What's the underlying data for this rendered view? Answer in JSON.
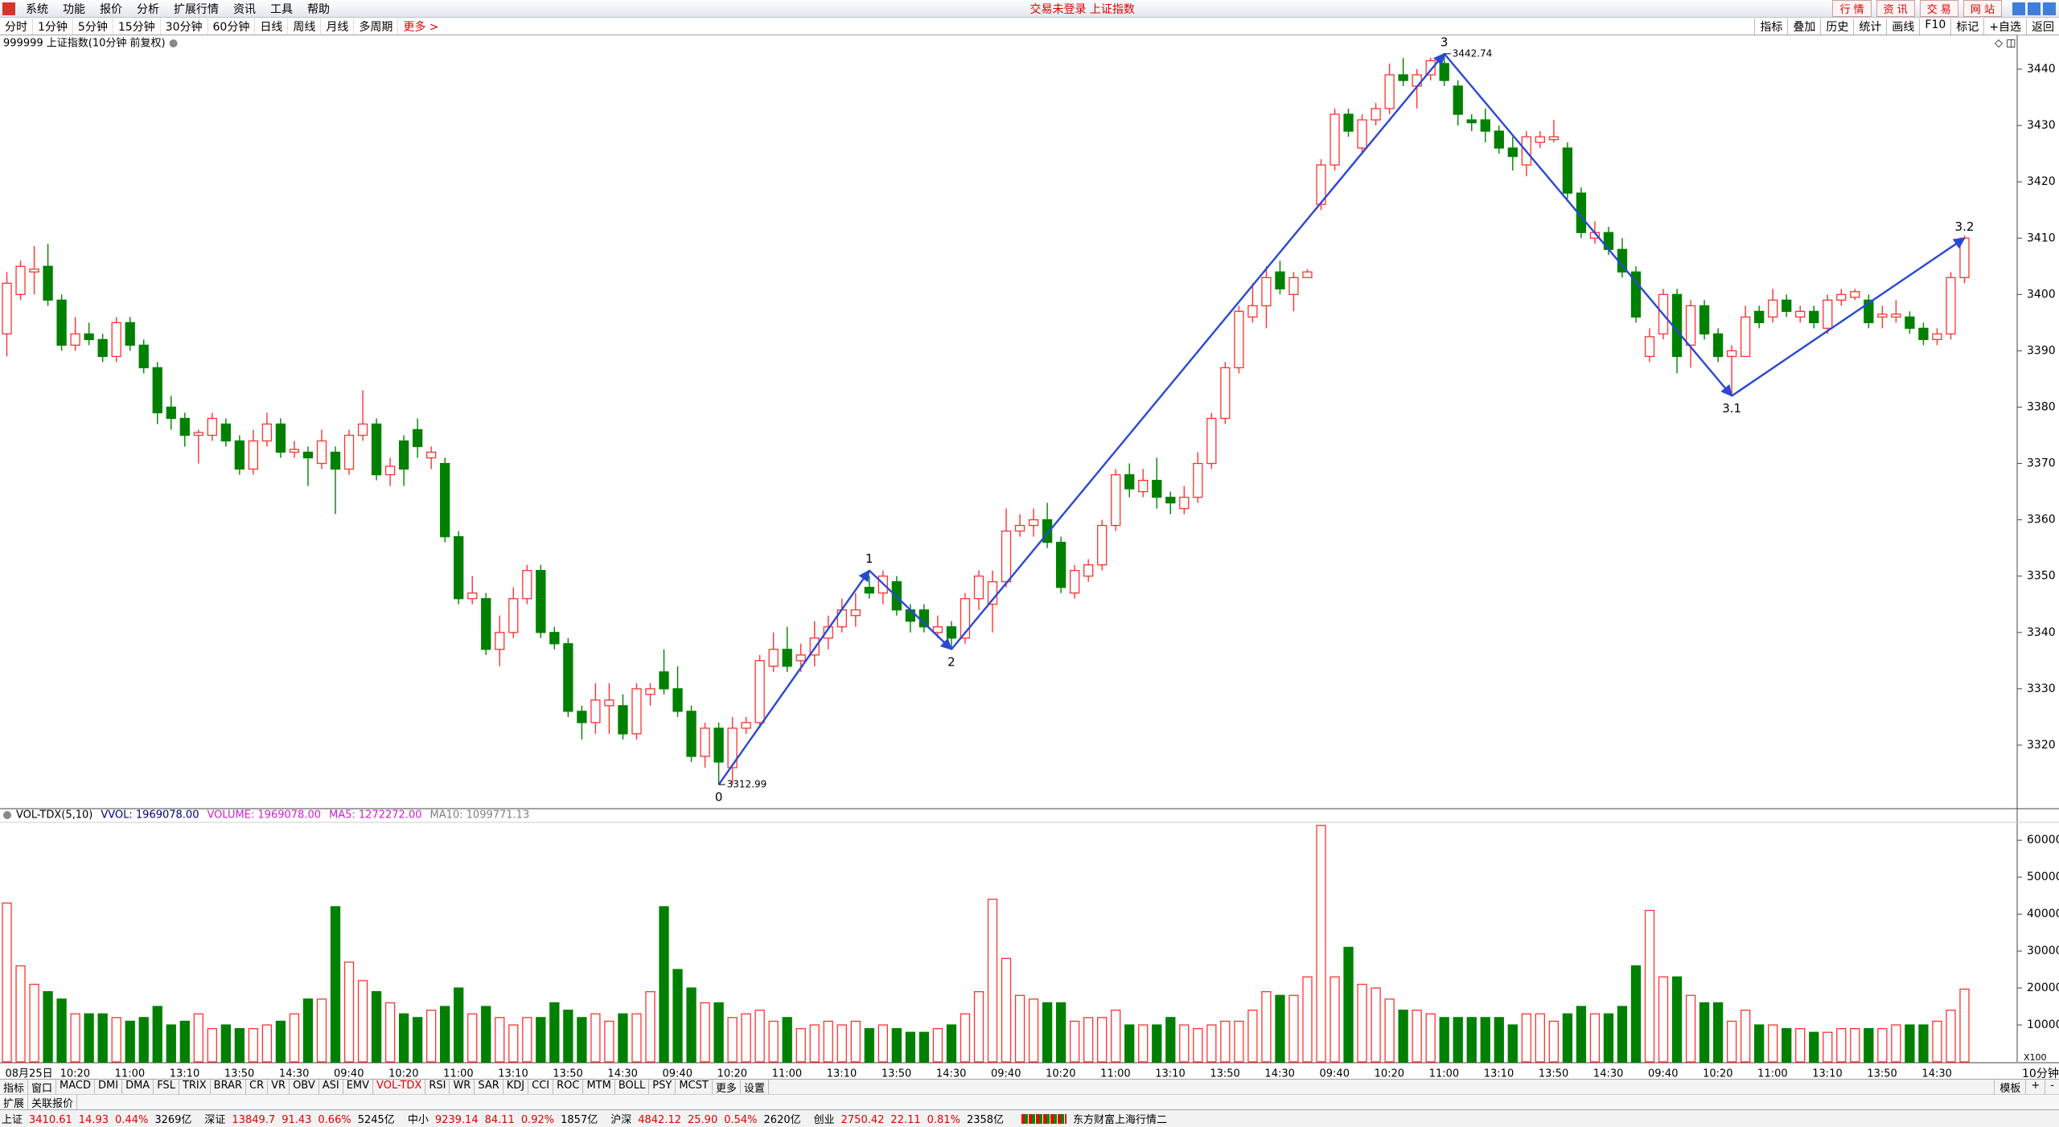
{
  "menu": {
    "items": [
      "系统",
      "功能",
      "报价",
      "分析",
      "扩展行情",
      "资讯",
      "工具",
      "帮助"
    ],
    "center": "交易未登录 上证指数",
    "buttons": [
      "行 情",
      "资 讯",
      "交 易",
      "网 站"
    ]
  },
  "toolbar": {
    "left": [
      "分时",
      "1分钟",
      "5分钟",
      "15分钟",
      "30分钟",
      "60分钟",
      "日线",
      "周线",
      "月线",
      "多周期"
    ],
    "more": "更多",
    "right": [
      "指标",
      "叠加",
      "历史",
      "统计",
      "画线",
      "F10",
      "标记",
      "+自选",
      "返回"
    ]
  },
  "chart_data": {
    "type": "candlestick",
    "title": "999999 上证指数(10分钟 前复权)",
    "categories": [
      "08月25日",
      null,
      null,
      null,
      "10:20",
      null,
      null,
      null,
      "11:00",
      null,
      null,
      null,
      "13:10",
      null,
      null,
      null,
      "13:50",
      null,
      null,
      null,
      "14:30",
      null,
      null,
      null,
      "09:40",
      null,
      null,
      null,
      "10:20",
      null,
      null,
      null,
      "11:00",
      null,
      null,
      null,
      "13:10",
      null,
      null,
      null,
      "13:50",
      null,
      null,
      null,
      "14:30",
      null,
      null,
      null,
      "09:40",
      null,
      null,
      null,
      "10:20",
      null,
      null,
      null,
      "11:00",
      null,
      null,
      null,
      "13:10",
      null,
      null,
      null,
      "13:50",
      null,
      null,
      null,
      "14:30",
      null,
      null,
      null,
      "09:40",
      null,
      null,
      null,
      "10:20",
      null,
      null,
      null,
      "11:00",
      null,
      null,
      null,
      "13:10",
      null,
      null,
      null,
      "13:50",
      null,
      null,
      null,
      "14:30",
      null,
      null,
      null,
      "09:40",
      null,
      null,
      null,
      "10:20",
      null,
      null,
      null,
      "11:00",
      null,
      null,
      null,
      "13:10",
      null,
      null,
      null,
      "13:50",
      null,
      null,
      null,
      "14:30",
      null,
      null,
      null,
      "09:40",
      null,
      null,
      null,
      "10:20",
      null,
      null,
      null,
      "11:00",
      null,
      null,
      null,
      "13:10",
      null,
      null,
      null,
      "13:50",
      null,
      null,
      null,
      "14:30",
      null,
      null,
      null
    ],
    "open": [
      3393,
      3400,
      3404,
      3405,
      3399,
      3391,
      3393,
      3392,
      3389,
      3395,
      3391,
      3387,
      3380,
      3378,
      3375,
      3375,
      3377,
      3374,
      3369,
      3374,
      3377,
      3372,
      3372,
      3370,
      3372,
      3369,
      3375,
      3377,
      3368,
      3374,
      3376,
      3371,
      3370,
      3357,
      3346,
      3346,
      3337,
      3340,
      3346,
      3351,
      3340,
      3338,
      3326,
      3324,
      3327,
      3327,
      3322,
      3329,
      3333,
      3330,
      3326,
      3318,
      3323,
      3316,
      3323,
      3324,
      3334,
      3337,
      3335,
      3336,
      3339,
      3341,
      3343,
      3348,
      3347,
      3349,
      3344,
      3344,
      3340,
      3341,
      3339,
      3346,
      3345,
      3349,
      3358,
      3359,
      3360,
      3356,
      3347,
      3350,
      3352,
      3359,
      3368,
      3365,
      3367,
      3364,
      3362,
      3364,
      3370,
      3378,
      3387,
      3396,
      3398,
      3404,
      3400,
      3403,
      3416,
      3423,
      3432,
      3426,
      3431,
      3433,
      3439,
      3437,
      3439,
      3441,
      3437,
      3431,
      3431,
      3429,
      3426,
      3423,
      3427,
      3427.5,
      3426,
      3418,
      3410,
      3411,
      3408,
      3404,
      3389,
      3393,
      3400,
      3391,
      3398,
      3393,
      3389,
      3389,
      3397,
      3396,
      3399,
      3396,
      3397,
      3394,
      3399,
      3399.5,
      3399,
      3396,
      3396,
      3396,
      3394,
      3392,
      3393,
      3403
    ],
    "high": [
      3404,
      3406,
      3408.6,
      3409,
      3400,
      3396,
      3395,
      3393,
      3396,
      3396,
      3392,
      3388,
      3382,
      3379,
      3376,
      3379,
      3378,
      3375,
      3376,
      3379,
      3378,
      3374,
      3373,
      3376,
      3373,
      3376,
      3383,
      3378,
      3371,
      3375,
      3378,
      3373,
      3371,
      3358,
      3350,
      3347,
      3343,
      3348,
      3352,
      3352,
      3341,
      3339,
      3327,
      3331,
      3331,
      3329,
      3331,
      3331,
      3337,
      3334,
      3327,
      3324,
      3324,
      3325,
      3325,
      3336,
      3340,
      3341,
      3338,
      3342,
      3343,
      3346,
      3347,
      3350,
      3351,
      3350,
      3345,
      3345,
      3343,
      3342,
      3347,
      3351,
      3351,
      3362,
      3361,
      3362,
      3363,
      3357,
      3352,
      3353,
      3360,
      3369,
      3370,
      3369,
      3371,
      3365,
      3366,
      3372,
      3379,
      3388,
      3398,
      3402,
      3405,
      3406,
      3404,
      3404.5,
      3424,
      3433,
      3433,
      3432,
      3434,
      3441,
      3442,
      3440,
      3442,
      3442.74,
      3438,
      3432,
      3433,
      3430,
      3428,
      3429,
      3429,
      3431,
      3427,
      3419,
      3413,
      3412,
      3410,
      3405,
      3394,
      3401,
      3401,
      3399,
      3399,
      3394,
      3391,
      3398,
      3398,
      3401,
      3400,
      3398,
      3398,
      3400,
      3401,
      3401,
      3400,
      3398,
      3399,
      3397,
      3395,
      3394,
      3404,
      3410.5
    ],
    "low": [
      3389,
      3399,
      3400,
      3398,
      3390,
      3390,
      3391,
      3388,
      3388,
      3390,
      3386,
      3377,
      3376,
      3373,
      3370,
      3374,
      3373,
      3368,
      3368,
      3373,
      3371,
      3371,
      3366,
      3369,
      3361,
      3368,
      3374,
      3367,
      3366,
      3366,
      3371,
      3369,
      3356,
      3345,
      3345,
      3336,
      3334,
      3339,
      3345,
      3339,
      3337,
      3325,
      3321,
      3322,
      3322,
      3321,
      3321,
      3327,
      3329,
      3325,
      3317,
      3316,
      3312.99,
      3313,
      3322,
      3323,
      3333,
      3333,
      3333,
      3334,
      3337,
      3340,
      3341,
      3346,
      3345,
      3343,
      3340,
      3340,
      3339,
      3337,
      3338,
      3344,
      3340,
      3348,
      3357,
      3357,
      3355,
      3347,
      3346,
      3349,
      3351,
      3358,
      3364,
      3364,
      3362,
      3361,
      3361,
      3363,
      3369,
      3377,
      3386,
      3395,
      3394,
      3400,
      3397,
      3403,
      3415,
      3422,
      3428,
      3425,
      3430,
      3432,
      3437,
      3433,
      3438,
      3437,
      3430,
      3429,
      3427,
      3425,
      3422,
      3421,
      3426,
      3427,
      3417,
      3410,
      3409,
      3407,
      3403,
      3395,
      3388,
      3392,
      3386,
      3387,
      3392,
      3388,
      3382,
      3389,
      3394,
      3395,
      3396,
      3395,
      3394,
      3393,
      3398,
      3399,
      3394,
      3394,
      3395,
      3393,
      3391,
      3391,
      3392,
      3402
    ],
    "close": [
      3402,
      3405,
      3404.5,
      3399,
      3391,
      3393,
      3392,
      3389,
      3395,
      3391,
      3387,
      3379,
      3378,
      3375,
      3375.5,
      3378,
      3374,
      3369,
      3374,
      3377,
      3372,
      3372.5,
      3371,
      3374,
      3369,
      3375,
      3377,
      3368,
      3369.5,
      3369,
      3373,
      3372,
      3357,
      3346,
      3347,
      3337,
      3340,
      3346,
      3351,
      3340,
      3338,
      3326,
      3324,
      3328,
      3328,
      3322,
      3330,
      3330,
      3330,
      3326,
      3318,
      3323,
      3317,
      3323,
      3324,
      3335,
      3337,
      3334,
      3336,
      3339,
      3341,
      3344,
      3344,
      3347,
      3350,
      3344,
      3342,
      3341,
      3341,
      3339,
      3346,
      3350,
      3349,
      3358,
      3359,
      3360,
      3356,
      3348,
      3351,
      3352,
      3359,
      3368,
      3365.5,
      3367,
      3364,
      3363,
      3364,
      3370,
      3378,
      3387,
      3397,
      3398,
      3403,
      3401,
      3403,
      3404,
      3423,
      3432,
      3429,
      3431,
      3433,
      3439,
      3438,
      3439,
      3441.5,
      3438,
      3432,
      3430.5,
      3429,
      3426,
      3424.5,
      3428,
      3428,
      3428,
      3418,
      3411,
      3411,
      3408,
      3404,
      3396,
      3392.5,
      3400,
      3389,
      3398,
      3393,
      3389,
      3390,
      3396,
      3395,
      3399,
      3397,
      3397,
      3395,
      3399,
      3400,
      3400.5,
      3395,
      3396.5,
      3396.5,
      3394,
      3392,
      3393,
      3403,
      3410
    ],
    "ylim": [
      3309,
      3446
    ],
    "yticks": [
      3320,
      3330,
      3340,
      3350,
      3360,
      3370,
      3380,
      3390,
      3400,
      3410,
      3420,
      3430,
      3440
    ],
    "up_color": "#ff3232",
    "down_color": "#008000",
    "extremes": [
      {
        "index": 52,
        "value": 3312.99
      },
      {
        "index": 105,
        "value": 3442.74
      }
    ],
    "waves": {
      "color": "#2a48d4",
      "points": [
        {
          "label": "0",
          "index": 52,
          "value": 3312.99
        },
        {
          "label": "1",
          "index": 63,
          "value": 3351
        },
        {
          "label": "2",
          "index": 69,
          "value": 3337
        },
        {
          "label": "3",
          "index": 105,
          "value": 3442.74
        },
        {
          "label": "3.1",
          "index": 126,
          "value": 3382
        },
        {
          "label": "3.2",
          "index": 143,
          "value": 3410
        }
      ]
    },
    "volume": {
      "type": "bar",
      "legend": [
        {
          "text": "VOL-TDX(5,10)",
          "color": "#000000"
        },
        {
          "text": "VVOL: 1969078.00",
          "color": "#00007f"
        },
        {
          "text": "VOLUME: 1969078.00",
          "color": "#d020d0"
        },
        {
          "text": "MA5: 1272272.00",
          "color": "#d020d0"
        },
        {
          "text": "MA10: 1099771.13",
          "color": "#808080"
        }
      ],
      "values": [
        43000,
        26000,
        21000,
        19000,
        17000,
        13000,
        13000,
        13000,
        12000,
        11000,
        12000,
        15000,
        10000,
        11000,
        13000,
        9000,
        10000,
        9000,
        9000,
        10000,
        11000,
        13000,
        17000,
        17000,
        42000,
        27000,
        22000,
        19000,
        16000,
        13000,
        12000,
        14000,
        15000,
        20000,
        13000,
        15000,
        12000,
        10000,
        12000,
        12000,
        16000,
        14000,
        12000,
        13000,
        11000,
        13000,
        13000,
        19000,
        42000,
        25000,
        20000,
        16000,
        16000,
        12000,
        13000,
        14000,
        11000,
        12000,
        9000,
        10000,
        11000,
        10000,
        11000,
        9000,
        10000,
        9000,
        8000,
        8000,
        9000,
        10000,
        13000,
        19000,
        44000,
        28000,
        18000,
        17000,
        16000,
        16000,
        11000,
        12000,
        12000,
        14000,
        10000,
        10000,
        10000,
        12000,
        10000,
        9000,
        10000,
        11000,
        11000,
        14000,
        19000,
        18000,
        18000,
        23000,
        64000,
        23000,
        31000,
        21000,
        20000,
        17000,
        14000,
        14000,
        13000,
        12000,
        12000,
        12000,
        12000,
        12000,
        10000,
        13000,
        13000,
        11000,
        13000,
        15000,
        13000,
        13000,
        15000,
        26000,
        41000,
        23000,
        23000,
        18000,
        16000,
        16000,
        11000,
        14000,
        10000,
        10000,
        9000,
        9000,
        8000,
        8000,
        9000,
        9000,
        9000,
        9000,
        10000,
        10000,
        10000,
        11000,
        14000,
        19690.78
      ],
      "ylim": [
        0,
        64400
      ],
      "yticks": [
        10000,
        20000,
        30000,
        40000,
        50000,
        60000
      ],
      "unit_label": "X100"
    },
    "period_label": "10分钟"
  },
  "indicator_tabs": {
    "items": [
      "指标",
      "窗口",
      "MACD",
      "DMI",
      "DMA",
      "FSL",
      "TRIX",
      "BRAR",
      "CR",
      "VR",
      "OBV",
      "ASI",
      "EMV",
      "VOL-TDX",
      "RSI",
      "WR",
      "SAR",
      "KDJ",
      "CCI",
      "ROC",
      "MTM",
      "BOLL",
      "PSY",
      "MCST",
      "更多",
      "设置"
    ],
    "active": "VOL-TDX",
    "right": [
      "模板",
      "+",
      "-"
    ]
  },
  "sub_tabs": [
    "扩展",
    "关联报价"
  ],
  "status_bar": {
    "indices": [
      {
        "name": "上证",
        "price": "3410.61",
        "change": "14.93",
        "pct": "0.44%",
        "amount": "3269亿"
      },
      {
        "name": "深证",
        "price": "13849.7",
        "change": "91.43",
        "pct": "0.66%",
        "amount": "5245亿"
      },
      {
        "name": "中小",
        "price": "9239.14",
        "change": "84.11",
        "pct": "0.92%",
        "amount": "1857亿"
      },
      {
        "name": "沪深",
        "price": "4842.12",
        "change": "25.90",
        "pct": "0.54%",
        "amount": "2620亿"
      },
      {
        "name": "创业",
        "price": "2750.42",
        "change": "22.11",
        "pct": "0.81%",
        "amount": "2358亿"
      }
    ],
    "feed": "东方财富上海行情二"
  }
}
